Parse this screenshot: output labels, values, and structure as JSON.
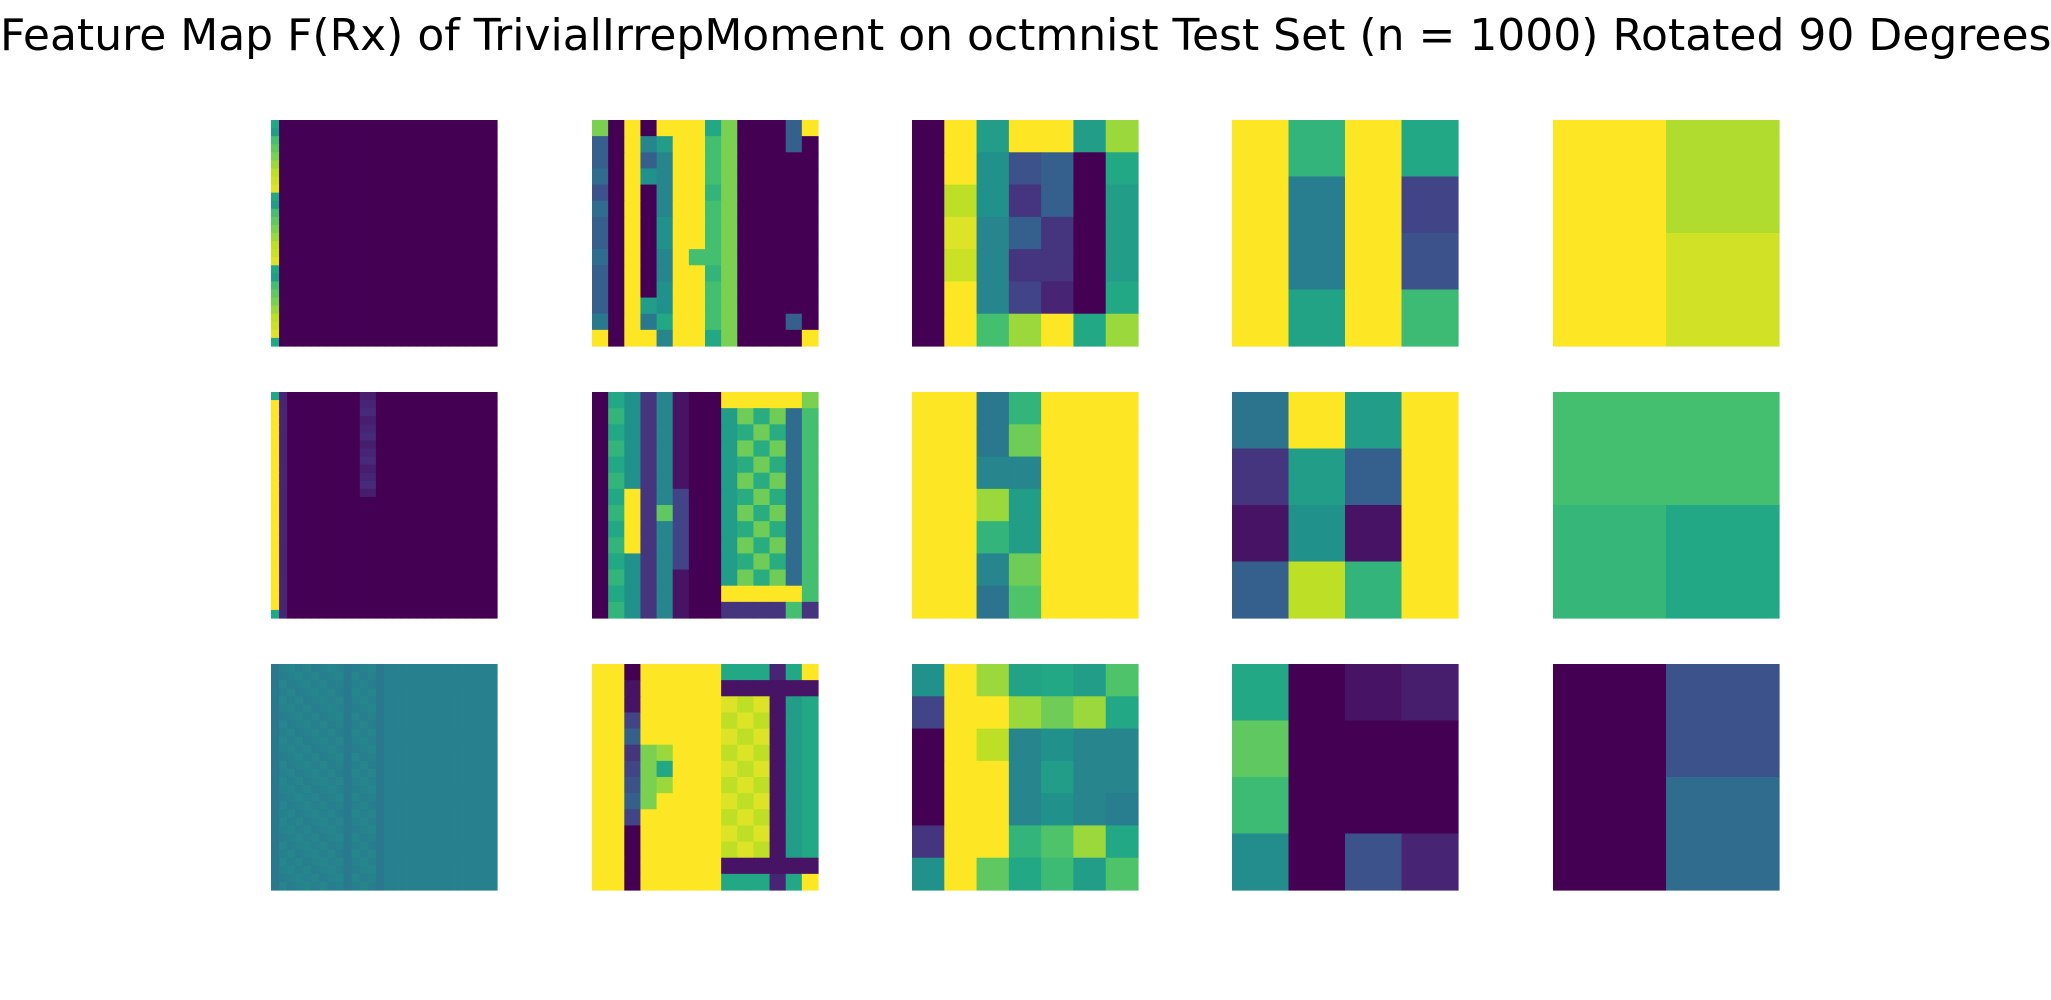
{
  "title": "Feature Map F(Rx) of TrivialIrrepMoment on octmnist Test Set (n = 1000) Rotated 90 Degrees",
  "chart_data": {
    "type": "heatmap",
    "title": "Feature Map F(Rx) of TrivialIrrepMoment on octmnist Test Set (n = 1000) Rotated 90 Degrees",
    "colormap": "viridis",
    "vmin": 0,
    "vmax": 1,
    "axes_visible": false,
    "grid": false,
    "layout": "3 rows x 5 columns",
    "panels": [
      [
        {
          "size": 28,
          "pattern": "dark with bright strip along left edge",
          "col_profile": [
            0.6,
            0.0,
            0.0,
            0.0,
            0.0,
            0.0,
            0.0,
            0.0,
            0.0,
            0.0,
            0.0,
            0.0,
            0.0,
            0.0,
            0.0,
            0.0,
            0.0,
            0.0,
            0.0,
            0.0,
            0.0,
            0.0,
            0.0,
            0.0,
            0.0,
            0.0,
            0.0,
            0.0
          ]
        },
        {
          "size": 14,
          "pattern": "vertical stripes"
        },
        {
          "size": 7,
          "values": [
            [
              0.0,
              1.0,
              0.55,
              1.0,
              1.0,
              0.55,
              0.85
            ],
            [
              0.0,
              1.0,
              0.5,
              0.25,
              0.3,
              0.0,
              0.6
            ],
            [
              0.0,
              0.9,
              0.5,
              0.15,
              0.3,
              0.0,
              0.55
            ],
            [
              0.0,
              0.95,
              0.45,
              0.3,
              0.15,
              0.0,
              0.55
            ],
            [
              0.0,
              0.92,
              0.45,
              0.15,
              0.15,
              0.0,
              0.55
            ],
            [
              0.0,
              1.0,
              0.45,
              0.2,
              0.1,
              0.0,
              0.6
            ],
            [
              0.0,
              1.0,
              0.7,
              0.85,
              1.0,
              0.6,
              0.85
            ]
          ]
        },
        {
          "size": 4,
          "values": [
            [
              1.0,
              0.65,
              1.0,
              0.6
            ],
            [
              1.0,
              0.42,
              1.0,
              0.2
            ],
            [
              1.0,
              0.42,
              1.0,
              0.25
            ],
            [
              1.0,
              0.58,
              1.0,
              0.68
            ]
          ]
        },
        {
          "size": 2,
          "values": [
            [
              1.0,
              0.88
            ],
            [
              1.0,
              0.93
            ]
          ]
        }
      ],
      [
        {
          "size": 28,
          "pattern": "dark with bright strip along left edge and faint columns"
        },
        {
          "size": 14,
          "pattern": "vertical stripes with checkered block"
        },
        {
          "size": 7,
          "values": [
            [
              1.0,
              1.0,
              0.4,
              0.65,
              1.0,
              1.0,
              1.0
            ],
            [
              1.0,
              1.0,
              0.4,
              0.78,
              1.0,
              1.0,
              1.0
            ],
            [
              1.0,
              1.0,
              0.45,
              0.45,
              1.0,
              1.0,
              1.0
            ],
            [
              1.0,
              1.0,
              0.85,
              0.55,
              1.0,
              1.0,
              1.0
            ],
            [
              1.0,
              1.0,
              0.65,
              0.55,
              1.0,
              1.0,
              1.0
            ],
            [
              1.0,
              1.0,
              0.45,
              0.78,
              1.0,
              1.0,
              1.0
            ],
            [
              1.0,
              1.0,
              0.38,
              0.72,
              1.0,
              1.0,
              1.0
            ]
          ]
        },
        {
          "size": 4,
          "values": [
            [
              0.38,
              1.0,
              0.55,
              1.0
            ],
            [
              0.15,
              0.55,
              0.3,
              1.0
            ],
            [
              0.05,
              0.5,
              0.05,
              1.0
            ],
            [
              0.3,
              0.9,
              0.65,
              1.0
            ]
          ]
        },
        {
          "size": 2,
          "values": [
            [
              0.7,
              0.7
            ],
            [
              0.66,
              0.6
            ]
          ]
        }
      ],
      [
        {
          "size": 28,
          "pattern": "uniform teal with faint vertical streaks"
        },
        {
          "size": 14,
          "pattern": "bright with dark column and checkered block"
        },
        {
          "size": 7,
          "values": [
            [
              0.5,
              1.0,
              0.85,
              0.58,
              0.6,
              0.55,
              0.72
            ],
            [
              0.2,
              1.0,
              1.0,
              0.85,
              0.78,
              0.85,
              0.6
            ],
            [
              0.0,
              1.0,
              0.9,
              0.45,
              0.5,
              0.45,
              0.45
            ],
            [
              0.0,
              1.0,
              1.0,
              0.45,
              0.55,
              0.45,
              0.45
            ],
            [
              0.0,
              1.0,
              1.0,
              0.45,
              0.5,
              0.45,
              0.42
            ],
            [
              0.15,
              1.0,
              1.0,
              0.65,
              0.72,
              0.85,
              0.6
            ],
            [
              0.5,
              1.0,
              0.75,
              0.6,
              0.68,
              0.55,
              0.72
            ]
          ]
        },
        {
          "size": 4,
          "values": [
            [
              0.6,
              0.0,
              0.05,
              0.08
            ],
            [
              0.75,
              0.0,
              0.0,
              0.0
            ],
            [
              0.68,
              0.0,
              0.0,
              0.0
            ],
            [
              0.48,
              0.0,
              0.25,
              0.1
            ]
          ]
        },
        {
          "size": 2,
          "values": [
            [
              0.0,
              0.25
            ],
            [
              0.0,
              0.35
            ]
          ]
        }
      ]
    ]
  }
}
